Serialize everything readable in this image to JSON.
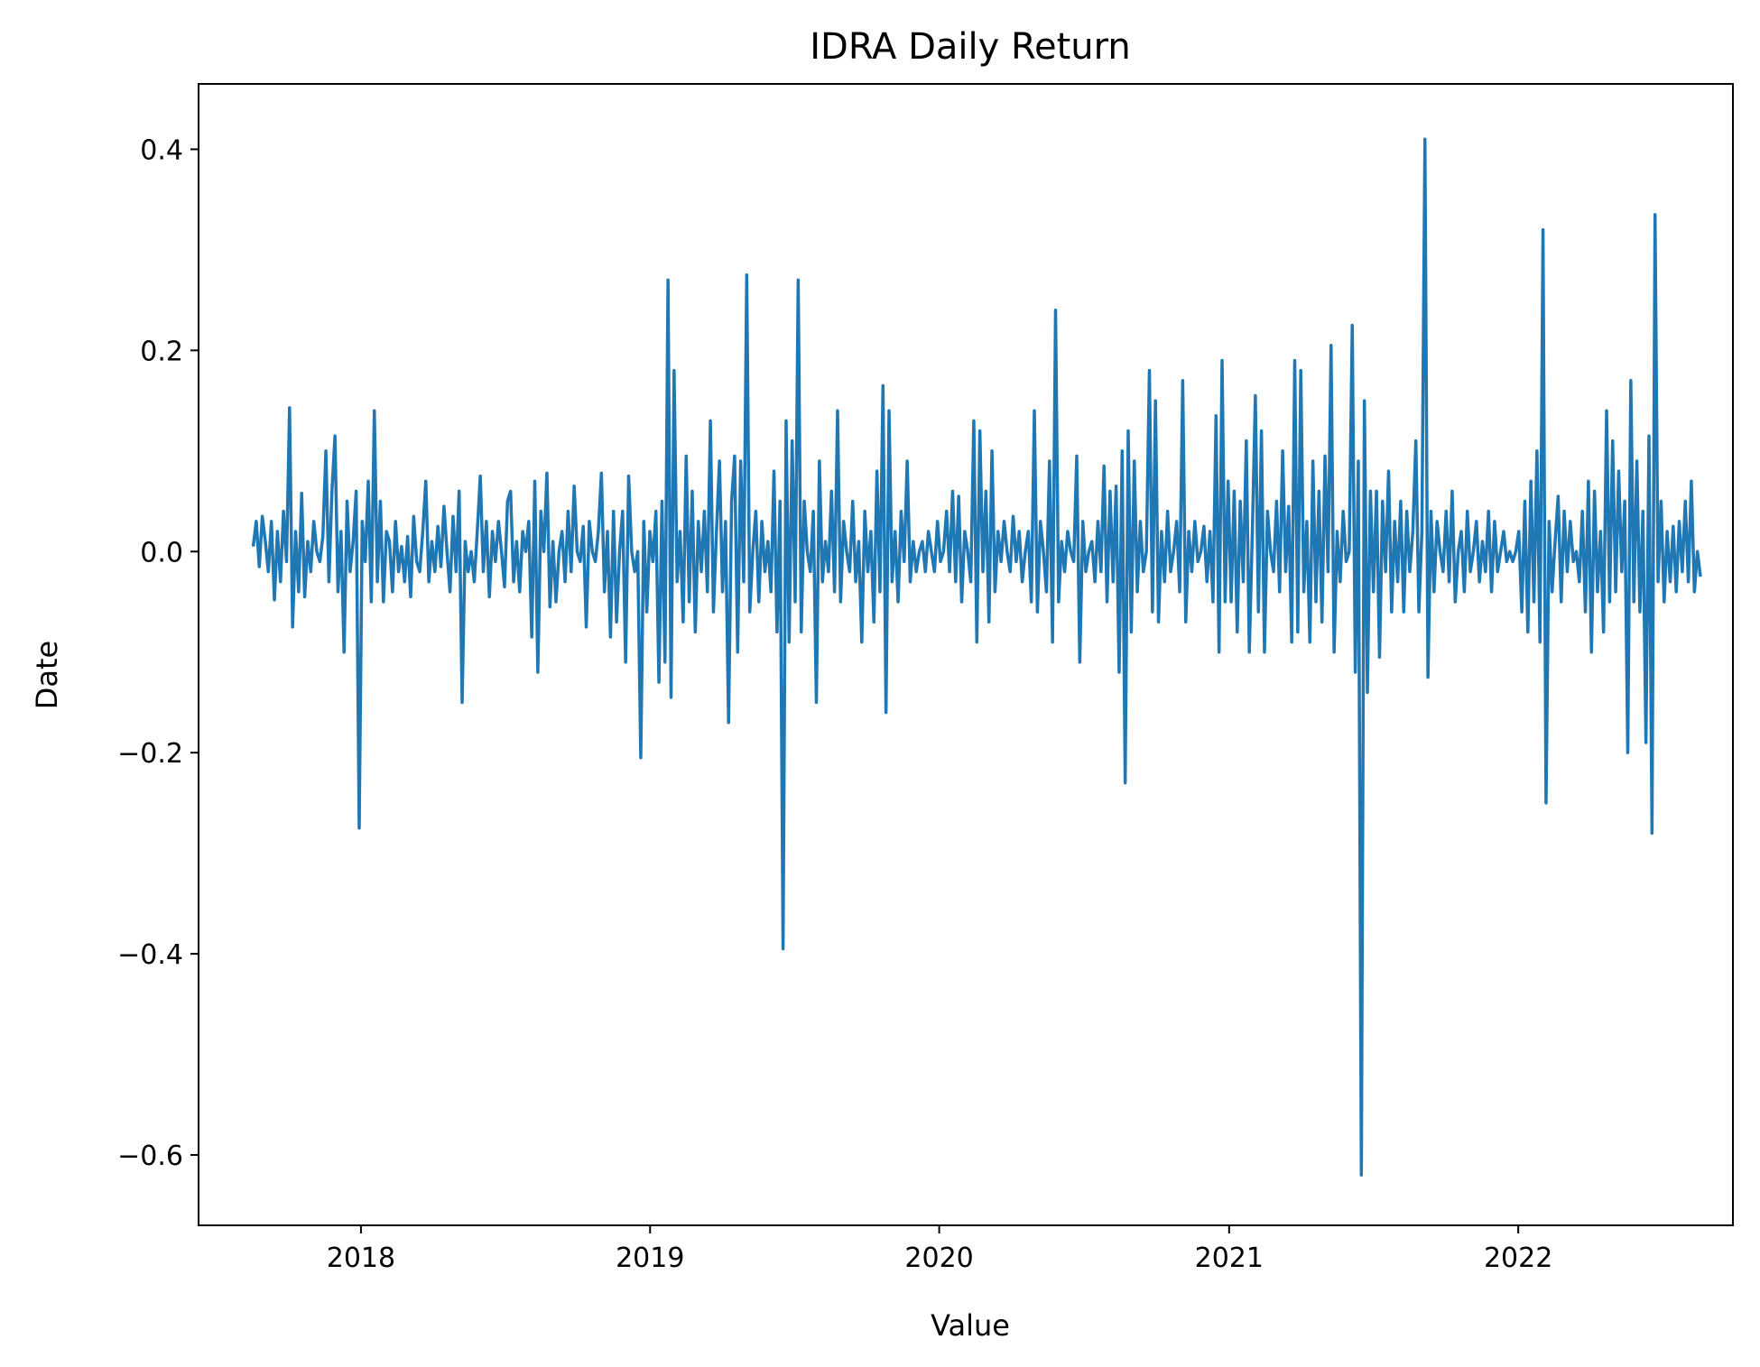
{
  "chart_data": {
    "type": "line",
    "title": "IDRA Daily Return",
    "xlabel": "Value",
    "ylabel": "Date",
    "x_axis": "date",
    "xlim": [
      "2017-06-10",
      "2022-09-29"
    ],
    "ylim": [
      -0.67,
      0.465
    ],
    "x_ticks": [
      {
        "label": "2018",
        "date": "2018-01-01"
      },
      {
        "label": "2019",
        "date": "2019-01-01"
      },
      {
        "label": "2020",
        "date": "2020-01-01"
      },
      {
        "label": "2021",
        "date": "2021-01-01"
      },
      {
        "label": "2022",
        "date": "2022-01-01"
      }
    ],
    "y_ticks": [
      {
        "label": "0.4",
        "value": 0.4
      },
      {
        "label": "0.2",
        "value": 0.2
      },
      {
        "label": "0.0",
        "value": 0.0
      },
      {
        "label": "−0.2",
        "value": -0.2
      },
      {
        "label": "−0.4",
        "value": -0.4
      },
      {
        "label": "−0.6",
        "value": -0.6
      }
    ],
    "grid": false,
    "line_color": "#1f77b4",
    "series": [
      {
        "x_start": "2017-08-18",
        "x_end": "2022-08-19",
        "values": [
          0.005,
          0.03,
          -0.015,
          0.035,
          0.01,
          -0.02,
          0.03,
          -0.048,
          0.02,
          -0.03,
          0.04,
          -0.01,
          0.143,
          -0.075,
          0.02,
          -0.04,
          0.058,
          -0.045,
          0.01,
          -0.02,
          0.03,
          0.0,
          -0.01,
          0.015,
          0.1,
          -0.03,
          0.06,
          0.115,
          -0.04,
          0.02,
          -0.1,
          0.05,
          -0.02,
          0.01,
          0.06,
          -0.275,
          0.03,
          -0.01,
          0.07,
          -0.05,
          0.14,
          -0.03,
          0.05,
          -0.05,
          0.02,
          0.01,
          -0.04,
          0.03,
          -0.02,
          0.005,
          -0.03,
          0.015,
          -0.045,
          0.035,
          -0.01,
          -0.02,
          0.02,
          0.07,
          -0.03,
          0.01,
          -0.02,
          0.025,
          -0.015,
          0.045,
          0.0,
          -0.04,
          0.035,
          -0.02,
          0.06,
          -0.15,
          0.01,
          -0.02,
          0.0,
          -0.03,
          0.02,
          0.075,
          -0.02,
          0.03,
          -0.045,
          0.02,
          -0.01,
          0.03,
          0.0,
          -0.035,
          0.05,
          0.06,
          -0.03,
          0.01,
          -0.04,
          0.02,
          0.0,
          0.03,
          -0.085,
          0.07,
          -0.12,
          0.04,
          0.0,
          0.078,
          -0.055,
          0.01,
          -0.05,
          0.0,
          0.02,
          -0.03,
          0.04,
          -0.02,
          0.065,
          0.0,
          -0.01,
          0.025,
          -0.075,
          0.03,
          0.0,
          -0.01,
          0.02,
          0.078,
          -0.04,
          0.02,
          -0.085,
          0.04,
          -0.07,
          0.0,
          0.04,
          -0.11,
          0.075,
          0.0,
          -0.02,
          0.0,
          -0.205,
          0.03,
          -0.06,
          0.02,
          -0.01,
          0.04,
          -0.13,
          0.05,
          -0.11,
          0.27,
          -0.145,
          0.18,
          -0.03,
          0.02,
          -0.07,
          0.095,
          -0.05,
          0.06,
          -0.08,
          0.03,
          -0.02,
          0.04,
          -0.04,
          0.13,
          -0.06,
          0.02,
          0.09,
          -0.04,
          0.03,
          -0.17,
          0.05,
          0.095,
          -0.1,
          0.09,
          -0.03,
          0.275,
          -0.06,
          0.0,
          0.04,
          -0.05,
          0.03,
          -0.02,
          0.01,
          -0.04,
          0.08,
          -0.08,
          0.05,
          -0.395,
          0.13,
          -0.09,
          0.11,
          -0.05,
          0.27,
          -0.08,
          0.05,
          0.0,
          -0.02,
          0.04,
          -0.15,
          0.09,
          -0.03,
          0.01,
          -0.02,
          0.06,
          -0.04,
          0.14,
          -0.05,
          0.03,
          0.0,
          -0.02,
          0.05,
          -0.03,
          0.01,
          -0.09,
          0.04,
          -0.02,
          0.02,
          -0.07,
          0.08,
          -0.04,
          0.165,
          -0.16,
          0.14,
          -0.03,
          0.02,
          -0.05,
          0.04,
          -0.01,
          0.09,
          -0.03,
          0.01,
          -0.02,
          0.0,
          0.01,
          -0.02,
          0.02,
          0.0,
          -0.02,
          0.03,
          -0.01,
          0.0,
          0.04,
          -0.02,
          0.06,
          -0.03,
          0.055,
          -0.05,
          0.02,
          0.0,
          -0.03,
          0.13,
          -0.09,
          0.12,
          -0.02,
          0.06,
          -0.07,
          0.1,
          -0.04,
          0.02,
          -0.01,
          0.03,
          0.0,
          -0.02,
          0.035,
          -0.01,
          0.02,
          -0.03,
          0.0,
          0.02,
          -0.05,
          0.14,
          -0.06,
          0.03,
          0.0,
          -0.04,
          0.09,
          -0.09,
          0.24,
          -0.05,
          0.01,
          -0.02,
          0.02,
          0.0,
          -0.01,
          0.095,
          -0.11,
          0.03,
          -0.02,
          0.0,
          0.01,
          -0.03,
          0.03,
          -0.02,
          0.085,
          -0.05,
          0.06,
          -0.03,
          0.065,
          -0.12,
          0.1,
          -0.23,
          0.12,
          -0.08,
          0.09,
          -0.04,
          0.03,
          -0.02,
          0.0,
          0.18,
          -0.06,
          0.15,
          -0.07,
          0.02,
          -0.03,
          0.04,
          -0.02,
          0.0,
          0.03,
          -0.04,
          0.17,
          -0.07,
          0.02,
          -0.02,
          0.03,
          -0.01,
          0.0,
          0.025,
          -0.03,
          0.02,
          -0.05,
          0.135,
          -0.1,
          0.19,
          -0.05,
          0.07,
          -0.05,
          0.06,
          -0.08,
          0.05,
          -0.03,
          0.11,
          -0.1,
          0.02,
          0.155,
          -0.06,
          0.12,
          -0.1,
          0.04,
          0.0,
          -0.02,
          0.05,
          -0.04,
          0.1,
          -0.02,
          0.045,
          -0.09,
          0.19,
          -0.08,
          0.18,
          -0.04,
          0.03,
          -0.09,
          0.09,
          -0.05,
          0.06,
          -0.07,
          0.095,
          -0.02,
          0.205,
          -0.1,
          0.02,
          -0.03,
          0.04,
          -0.01,
          0.0,
          0.225,
          -0.12,
          0.09,
          -0.62,
          0.15,
          -0.14,
          0.06,
          -0.04,
          0.06,
          -0.105,
          0.05,
          -0.02,
          0.08,
          -0.06,
          0.03,
          -0.03,
          0.05,
          -0.06,
          0.04,
          -0.02,
          0.02,
          0.11,
          -0.06,
          0.02,
          0.41,
          -0.125,
          0.04,
          -0.04,
          0.03,
          0.0,
          -0.02,
          0.04,
          -0.03,
          0.06,
          -0.05,
          0.0,
          0.02,
          -0.04,
          0.04,
          -0.02,
          0.0,
          0.03,
          -0.03,
          0.01,
          -0.02,
          0.04,
          -0.04,
          0.03,
          -0.02,
          0.0,
          0.02,
          -0.01,
          0.0,
          -0.01,
          0.0,
          0.02,
          -0.06,
          0.05,
          -0.08,
          0.07,
          -0.05,
          0.1,
          -0.09,
          0.32,
          -0.25,
          0.03,
          -0.04,
          0.01,
          0.055,
          -0.05,
          0.04,
          -0.02,
          0.03,
          -0.01,
          0.0,
          -0.03,
          0.04,
          -0.06,
          0.07,
          -0.1,
          0.06,
          -0.04,
          0.02,
          -0.08,
          0.14,
          -0.05,
          0.11,
          -0.04,
          0.08,
          -0.02,
          0.05,
          -0.2,
          0.17,
          -0.05,
          0.09,
          -0.06,
          0.04,
          -0.19,
          0.115,
          -0.28,
          0.335,
          -0.03,
          0.05,
          -0.05,
          0.02,
          -0.03,
          0.025,
          -0.04,
          0.03,
          -0.02,
          0.05,
          -0.03,
          0.07,
          -0.04,
          0.0,
          -0.025
        ]
      }
    ]
  }
}
